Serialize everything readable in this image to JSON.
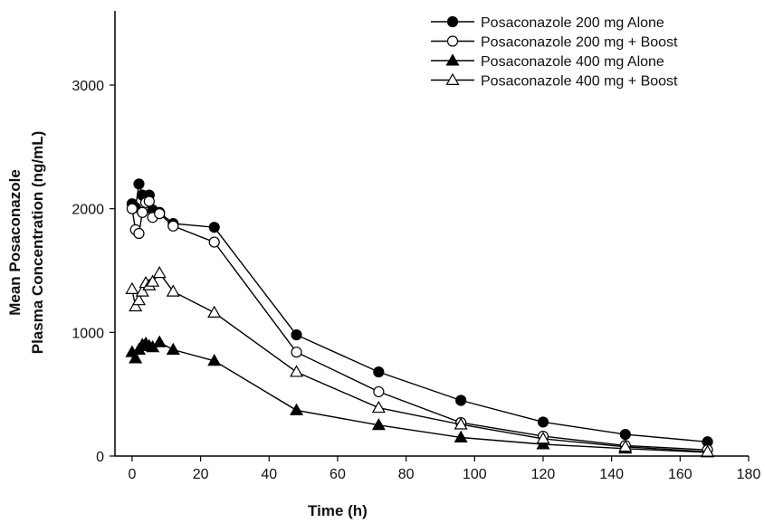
{
  "chart_data": {
    "type": "line",
    "title": "",
    "xlabel": "Time (h)",
    "ylabel_lines": [
      "Mean Posaconazole",
      "Plasma Concentration (ng/mL)"
    ],
    "xlim": [
      -5,
      180
    ],
    "ylim": [
      0,
      3600
    ],
    "xticks": [
      0,
      20,
      40,
      60,
      80,
      100,
      120,
      140,
      160,
      180
    ],
    "yticks": [
      0,
      1000,
      2000,
      3000
    ],
    "grid": false,
    "legend_placement": "top-right",
    "series": [
      {
        "name": "Posaconazole 200 mg Alone",
        "marker": "circle",
        "fill": "#000000",
        "x": [
          0,
          1,
          2,
          3,
          4,
          5,
          6,
          8,
          12,
          24,
          48,
          72,
          96,
          120,
          144,
          168
        ],
        "y": [
          2040,
          2010,
          2200,
          2110,
          2080,
          2110,
          1990,
          1970,
          1880,
          1850,
          980,
          680,
          450,
          275,
          175,
          115
        ]
      },
      {
        "name": "Posaconazole 200 mg + Boost",
        "marker": "circle",
        "fill": "#ffffff",
        "x": [
          0,
          1,
          2,
          3,
          4,
          5,
          6,
          8,
          12,
          24,
          48,
          72,
          96,
          120,
          144,
          168
        ],
        "y": [
          2000,
          1830,
          1800,
          1970,
          2050,
          2060,
          1930,
          1960,
          1860,
          1730,
          840,
          520,
          270,
          160,
          85,
          50
        ]
      },
      {
        "name": "Posaconazole 400 mg Alone",
        "marker": "triangle",
        "fill": "#000000",
        "x": [
          0,
          1,
          2,
          3,
          4,
          5,
          6,
          8,
          12,
          24,
          48,
          72,
          96,
          120,
          144,
          168
        ],
        "y": [
          840,
          790,
          860,
          900,
          910,
          890,
          880,
          920,
          860,
          770,
          370,
          250,
          150,
          95,
          60,
          30
        ]
      },
      {
        "name": "Posaconazole 400 mg + Boost",
        "marker": "triangle",
        "fill": "#ffffff",
        "x": [
          0,
          1,
          2,
          3,
          4,
          5,
          6,
          8,
          12,
          24,
          48,
          72,
          96,
          120,
          144,
          168
        ],
        "y": [
          1350,
          1210,
          1260,
          1330,
          1400,
          1380,
          1410,
          1480,
          1330,
          1160,
          680,
          390,
          255,
          140,
          75,
          35
        ]
      }
    ]
  }
}
